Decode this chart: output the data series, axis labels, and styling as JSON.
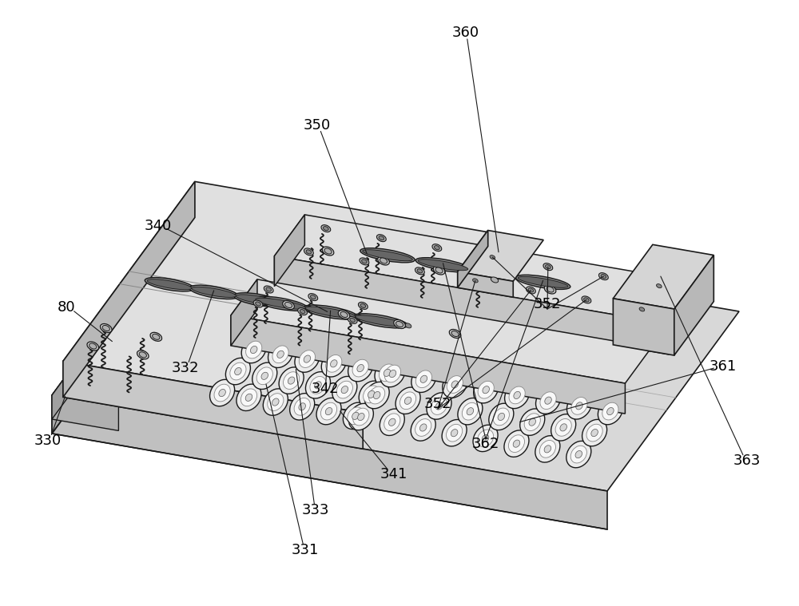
{
  "bg": "#ffffff",
  "lc": "#1a1a1a",
  "fc_top": "#e8e8e8",
  "fc_side_dark": "#b0b0b0",
  "fc_side_mid": "#c8c8c8",
  "fc_face": "#d8d8d8",
  "figsize": [
    10.0,
    7.59
  ],
  "dpi": 100
}
